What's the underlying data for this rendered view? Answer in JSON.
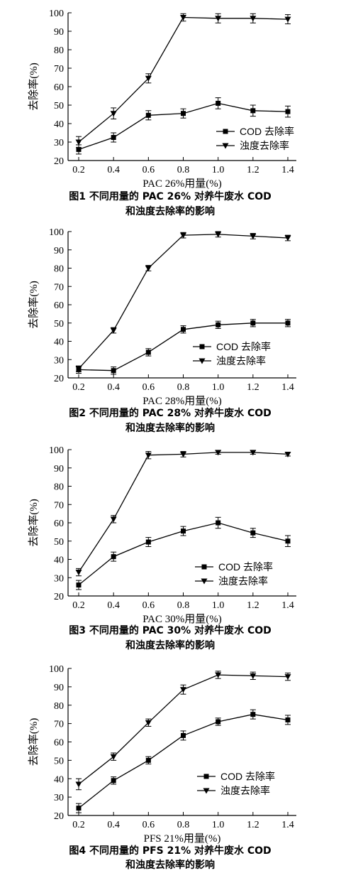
{
  "chart_data": [
    {
      "type": "line",
      "ylabel": "去除率(%)",
      "xlabel": "PAC 26%用量(%)",
      "xlim": [
        0.2,
        1.4
      ],
      "ylim": [
        20,
        100
      ],
      "x_ticks": [
        "0.2",
        "0.4",
        "0.6",
        "0.8",
        "1.0",
        "1.2",
        "1.4"
      ],
      "y_ticks": [
        "20",
        "30",
        "40",
        "50",
        "60",
        "70",
        "80",
        "90",
        "100"
      ],
      "x": [
        0.2,
        0.4,
        0.6,
        0.8,
        1.0,
        1.2,
        1.4
      ],
      "series": [
        {
          "name": "COD 去除率",
          "marker": "square",
          "values": [
            26,
            32.5,
            44.5,
            45.5,
            51,
            47,
            46.5
          ],
          "errors": [
            2.5,
            2.5,
            2.5,
            2.5,
            3,
            3,
            3
          ]
        },
        {
          "name": "浊度去除率",
          "marker": "triangle-down",
          "values": [
            30,
            45.5,
            64.5,
            97.5,
            97,
            97,
            96.5
          ],
          "errors": [
            3,
            3,
            2.5,
            2,
            2.5,
            2.5,
            2.5
          ]
        }
      ],
      "legend_position": "lower-right",
      "caption": [
        "图1 不同用量的 PAC 26% 对养牛废水 COD",
        "和浊度去除率的影响"
      ]
    },
    {
      "type": "line",
      "ylabel": "去除率(%)",
      "xlabel": "PAC 28%用量(%)",
      "xlim": [
        0.2,
        1.4
      ],
      "ylim": [
        20,
        100
      ],
      "x_ticks": [
        "0.2",
        "0.4",
        "0.6",
        "0.8",
        "1.0",
        "1.2",
        "1.4"
      ],
      "y_ticks": [
        "20",
        "30",
        "40",
        "50",
        "60",
        "70",
        "80",
        "90",
        "100"
      ],
      "x": [
        0.2,
        0.4,
        0.6,
        0.8,
        1.0,
        1.2,
        1.4
      ],
      "series": [
        {
          "name": "COD 去除率",
          "marker": "square",
          "values": [
            24.5,
            24,
            34,
            46.5,
            49,
            50,
            50
          ],
          "errors": [
            2,
            2,
            2,
            2,
            2,
            2,
            2
          ]
        },
        {
          "name": "浊度去除率",
          "marker": "triangle-down",
          "values": [
            25,
            46,
            80,
            98,
            98.5,
            97.5,
            96.5
          ],
          "errors": [
            1.5,
            1.5,
            1.5,
            1.5,
            1.5,
            1.5,
            1.5
          ]
        }
      ],
      "legend_position": "lower-right",
      "caption": [
        "图2 不同用量的 PAC 28% 对养牛废水 COD",
        "和浊度去除率的影响"
      ]
    },
    {
      "type": "line",
      "ylabel": "去除率(%)",
      "xlabel": "PAC 30%用量(%)",
      "xlim": [
        0.2,
        1.4
      ],
      "ylim": [
        20,
        100
      ],
      "x_ticks": [
        "0.2",
        "0.4",
        "0.6",
        "0.8",
        "1.0",
        "1.2",
        "1.4"
      ],
      "y_ticks": [
        "20",
        "30",
        "40",
        "50",
        "60",
        "70",
        "80",
        "90",
        "100"
      ],
      "x": [
        0.2,
        0.4,
        0.6,
        0.8,
        1.0,
        1.2,
        1.4
      ],
      "series": [
        {
          "name": "COD 去除率",
          "marker": "square",
          "values": [
            26,
            41.5,
            49.5,
            55.5,
            60,
            54.5,
            50
          ],
          "errors": [
            2.5,
            2.5,
            2.5,
            2.5,
            3,
            2.5,
            3
          ]
        },
        {
          "name": "浊度去除率",
          "marker": "triangle-down",
          "values": [
            33,
            62,
            97,
            97.5,
            98.5,
            98.5,
            97.5
          ],
          "errors": [
            2,
            2,
            2,
            1.5,
            1,
            1,
            1
          ]
        }
      ],
      "legend_position": "lower-right",
      "caption": [
        "图3 不同用量的 PAC 30% 对养牛废水 COD",
        "和浊度去除率的影响"
      ]
    },
    {
      "type": "line",
      "ylabel": "去除率(%)",
      "xlabel": "PFS 21%用量(%)",
      "xlim": [
        0.2,
        1.4
      ],
      "ylim": [
        20,
        100
      ],
      "x_ticks": [
        "0.2",
        "0.4",
        "0.6",
        "0.8",
        "1.0",
        "1.2",
        "1.4"
      ],
      "y_ticks": [
        "20",
        "30",
        "40",
        "50",
        "60",
        "70",
        "80",
        "90",
        "100"
      ],
      "x": [
        0.2,
        0.4,
        0.6,
        0.8,
        1.0,
        1.2,
        1.4
      ],
      "series": [
        {
          "name": "COD 去除率",
          "marker": "square",
          "values": [
            24,
            39,
            50,
            63.5,
            71,
            75,
            72
          ],
          "errors": [
            2.5,
            2,
            2,
            2.5,
            2,
            2.5,
            2.5
          ]
        },
        {
          "name": "浊度去除率",
          "marker": "triangle-down",
          "values": [
            37,
            52,
            70.5,
            88.5,
            96.5,
            96,
            95.5
          ],
          "errors": [
            3,
            2,
            2,
            2.5,
            2,
            2,
            2
          ]
        }
      ],
      "legend_position": "lower-right",
      "caption": [
        "图4 不同用量的 PFS 21% 对养牛废水 COD",
        "和浊度去除率的影响"
      ]
    }
  ]
}
